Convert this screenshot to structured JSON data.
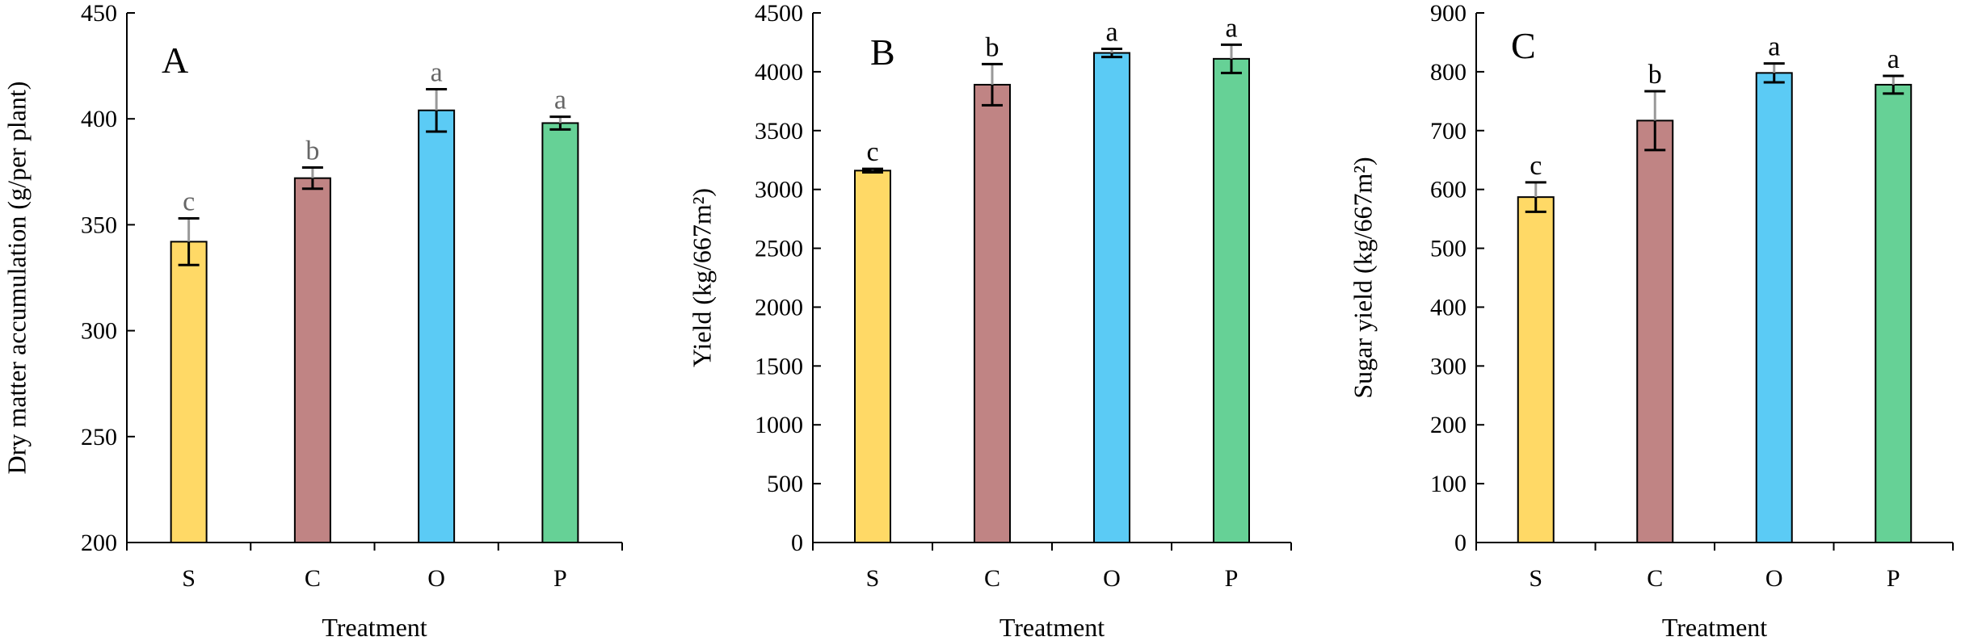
{
  "chart_data": [
    {
      "type": "bar",
      "panel_label": "A",
      "categories": [
        "S",
        "C",
        "O",
        "P"
      ],
      "values": [
        342,
        372,
        404,
        398
      ],
      "errors": [
        11,
        5,
        10,
        3
      ],
      "significance": [
        "c",
        "b",
        "a",
        "a"
      ],
      "xlabel": "Treatment",
      "ylabel": "Dry matter accumulation (g/per plant)",
      "ylim": [
        200,
        450
      ],
      "yticks": [
        "200",
        "250",
        "300",
        "350",
        "400",
        "450"
      ],
      "sig_color": "#666666",
      "error_color": "#000000"
    },
    {
      "type": "bar",
      "panel_label": "B",
      "categories": [
        "S",
        "C",
        "O",
        "P"
      ],
      "values": [
        3160,
        3890,
        4160,
        4110
      ],
      "errors": [
        15,
        175,
        35,
        120
      ],
      "significance": [
        "c",
        "b",
        "a",
        "a"
      ],
      "xlabel": "Treatment",
      "ylabel": "Yield (kg/667m²)",
      "ylim": [
        0,
        4500
      ],
      "yticks": [
        "0",
        "500",
        "1000",
        "1500",
        "2000",
        "2500",
        "3000",
        "3500",
        "4000",
        "4500"
      ],
      "sig_color": "#000000",
      "error_color": "#000000"
    },
    {
      "type": "bar",
      "panel_label": "C",
      "categories": [
        "S",
        "C",
        "O",
        "P"
      ],
      "values": [
        587,
        717,
        798,
        778
      ],
      "errors": [
        25,
        50,
        16,
        15
      ],
      "significance": [
        "c",
        "b",
        "a",
        "a"
      ],
      "xlabel": "Treatment",
      "ylabel": "Sugar yield (kg/667m²)",
      "ylim": [
        0,
        900
      ],
      "yticks": [
        "0",
        "100",
        "200",
        "300",
        "400",
        "500",
        "600",
        "700",
        "800",
        "900"
      ],
      "sig_color": "#000000",
      "error_color": "#000000"
    }
  ],
  "colors": {
    "bars": [
      "#FFD966",
      "#C08484",
      "#5BCBF5",
      "#66D196"
    ],
    "axis": "#000000",
    "upper_error_whisker": "#999999"
  }
}
